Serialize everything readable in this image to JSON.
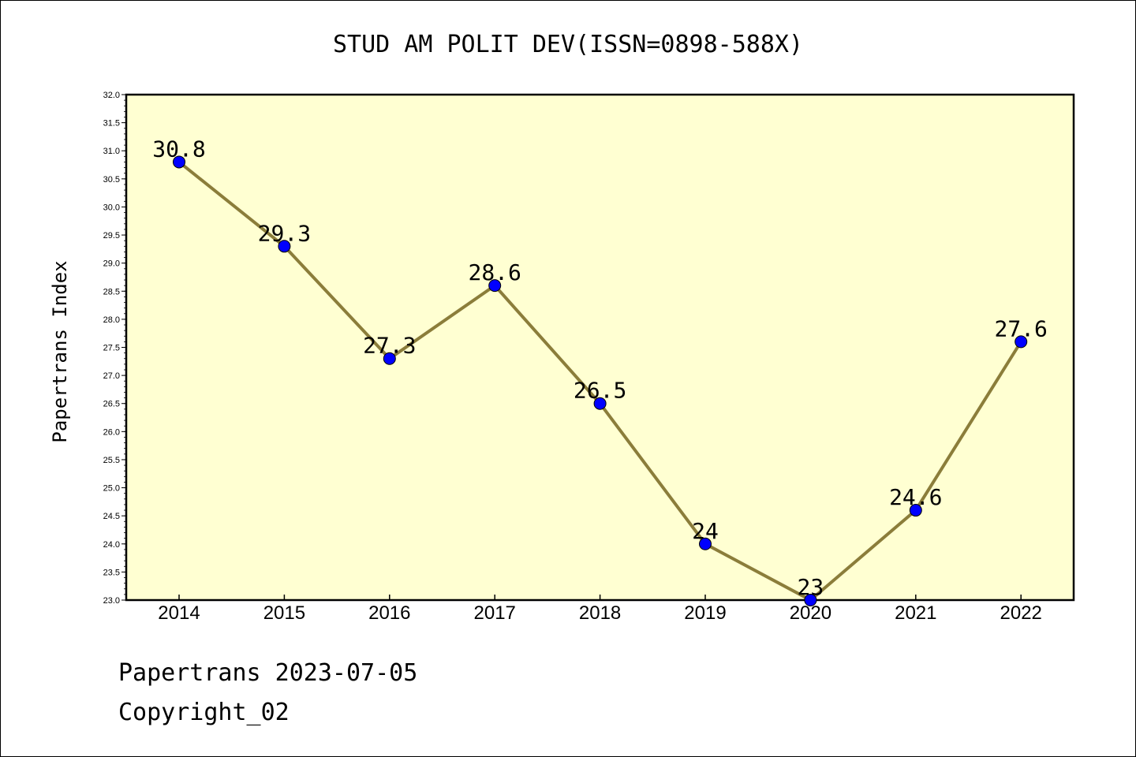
{
  "chart_data": {
    "type": "line",
    "title": "STUD AM POLIT DEV(ISSN=0898-588X)",
    "xlabel": "",
    "ylabel": "Papertrans Index",
    "categories": [
      "2014",
      "2015",
      "2016",
      "2017",
      "2018",
      "2019",
      "2020",
      "2021",
      "2022"
    ],
    "series": [
      {
        "values": [
          30.8,
          29.3,
          27.3,
          28.6,
          26.5,
          24,
          23,
          24.6,
          27.6
        ]
      }
    ],
    "data_labels": [
      "30.8",
      "29.3",
      "27.3",
      "28.6",
      "26.5",
      "24",
      "23",
      "24.6",
      "27.6"
    ],
    "ylim": [
      23.0,
      32.0
    ],
    "yticks": [
      "23.0",
      "23.5",
      "24.0",
      "24.5",
      "25.0",
      "25.5",
      "26.0",
      "26.5",
      "27.0",
      "27.5",
      "28.0",
      "28.5",
      "29.0",
      "29.5",
      "30.0",
      "30.5",
      "31.0",
      "31.5",
      "32.0"
    ],
    "grid": false,
    "colors": {
      "line": "#8b7d3a",
      "marker": "#0000ff",
      "plot_bg": "#ffffd2"
    }
  },
  "footer": {
    "line1": "Papertrans 2023-07-05",
    "line2": "Copyright_02"
  }
}
